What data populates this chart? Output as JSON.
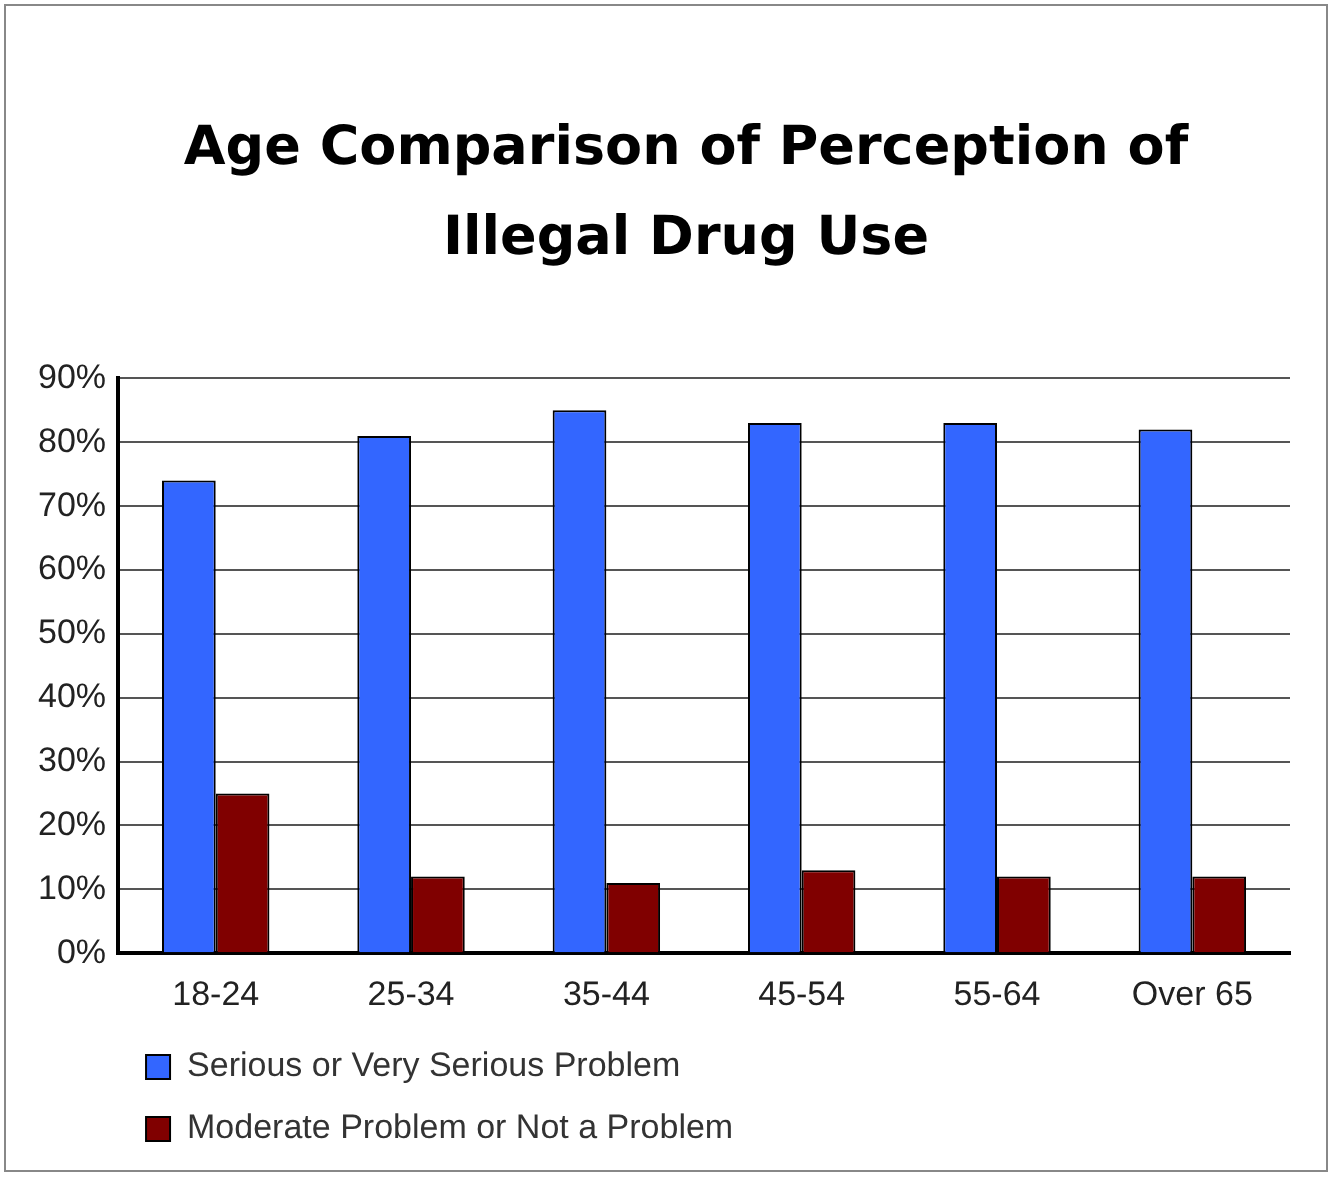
{
  "chart_data": {
    "type": "bar",
    "title": "Age Comparison of Perception of Illegal Drug Use",
    "categories": [
      "18-24",
      "25-34",
      "35-44",
      "45-54",
      "55-64",
      "Over 65"
    ],
    "series": [
      {
        "name": "Serious or Very Serious Problem",
        "color": "#3366ff",
        "values": [
          74,
          81,
          85,
          83,
          83,
          82
        ]
      },
      {
        "name": "Moderate Problem or Not a Problem",
        "color": "#800000",
        "values": [
          25,
          12,
          11,
          13,
          12,
          12
        ]
      }
    ],
    "ylim": [
      0,
      90
    ],
    "yticks": [
      {
        "value": 0,
        "label": "0%"
      },
      {
        "value": 10,
        "label": "10%"
      },
      {
        "value": 20,
        "label": "20%"
      },
      {
        "value": 30,
        "label": "30%"
      },
      {
        "value": 40,
        "label": "40%"
      },
      {
        "value": 50,
        "label": "50%"
      },
      {
        "value": 60,
        "label": "60%"
      },
      {
        "value": 70,
        "label": "70%"
      },
      {
        "value": 80,
        "label": "80%"
      },
      {
        "value": 90,
        "label": "90%"
      }
    ],
    "grid": "y",
    "legend": "bottom"
  }
}
